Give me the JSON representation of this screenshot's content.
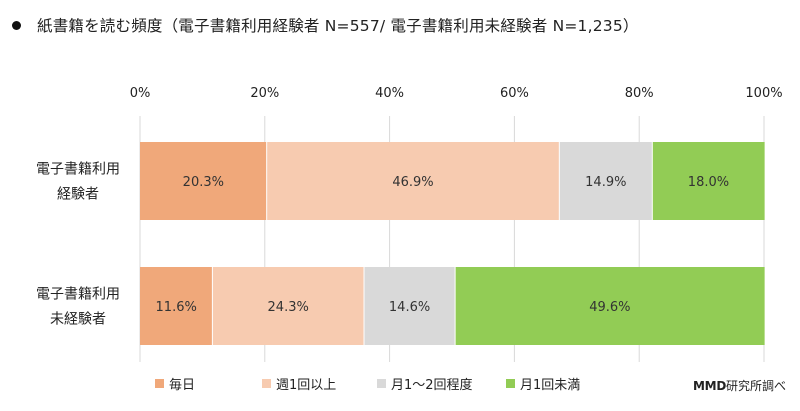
{
  "title": "紙書籍を読む頻度（電子書籍利用経験者 N=557/ 電子書籍利用未経験者 N=1,235）",
  "credit_brand": "MMD",
  "credit_suffix": "研究所調べ",
  "chart_data": {
    "type": "bar",
    "orientation": "horizontal",
    "stacked": true,
    "xlim": [
      0,
      100
    ],
    "x_ticks": [
      "0%",
      "20%",
      "40%",
      "60%",
      "80%",
      "100%"
    ],
    "categories": [
      [
        "電子書籍利用",
        "経験者"
      ],
      [
        "電子書籍利用",
        "未経験者"
      ]
    ],
    "series": [
      {
        "name": "毎日",
        "color": "#f0a87a",
        "values": [
          20.3,
          11.6
        ],
        "labels": [
          "20.3%",
          "11.6%"
        ]
      },
      {
        "name": "週1回以上",
        "color": "#f7cbb0",
        "values": [
          46.9,
          24.3
        ],
        "labels": [
          "46.9%",
          "24.3%"
        ]
      },
      {
        "name": "月1～2回程度",
        "color": "#d9d9d9",
        "values": [
          14.9,
          14.6
        ],
        "labels": [
          "14.9%",
          "14.6%"
        ]
      },
      {
        "name": "月1回未満",
        "color": "#92cc55",
        "values": [
          18.0,
          49.6
        ],
        "labels": [
          "18.0%",
          "49.6%"
        ]
      }
    ],
    "grid": true,
    "legend": "bottom"
  }
}
